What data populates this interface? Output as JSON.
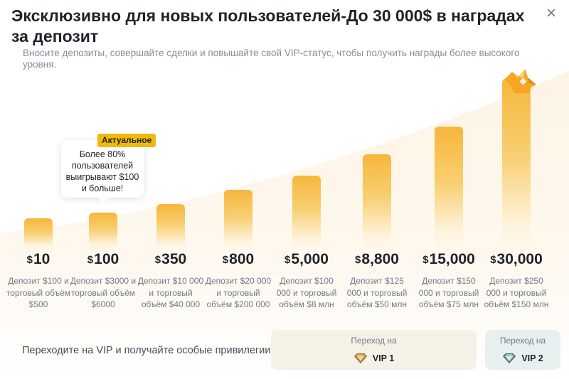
{
  "header": {
    "title": "Эксклюзивно для новых пользователей-До 30 000$ в наградах за депозит",
    "subtitle": "Вносите депозиты, совершайте сделки и повышайте свой VIP-статус, чтобы получить награды более высокого уровня.",
    "close_icon": "close-icon"
  },
  "colors": {
    "accent": "#f0b90b",
    "bar_top": "#f6b73c",
    "text_primary": "#1e2329",
    "text_secondary": "#707a8a"
  },
  "tooltip": {
    "badge": "Актуальное",
    "text": "Более 80% пользователей выигрывают $100 и больше!"
  },
  "tiers": [
    {
      "currency": "$",
      "amount": "10",
      "desc": "Депозит $100 и торговый объём $500"
    },
    {
      "currency": "$",
      "amount": "100",
      "desc": "Депозит $3000 и торговый объём $6000"
    },
    {
      "currency": "$",
      "amount": "350",
      "desc": "Депозит $10 000 и торговый объём $40 000"
    },
    {
      "currency": "$",
      "amount": "800",
      "desc": "Депозит $20 000 и торговый объём $200 000"
    },
    {
      "currency": "$",
      "amount": "5,000",
      "desc": "Депозит $100 000 и торговый объём $8 млн"
    },
    {
      "currency": "$",
      "amount": "8,800",
      "desc": "Депозит $125 000 и торговый объём $50 млн"
    },
    {
      "currency": "$",
      "amount": "15,000",
      "desc": "Депозит $150 000 и торговый объём $75 млн"
    },
    {
      "currency": "$",
      "amount": "30,000",
      "desc": "Депозит $250 000 и торговый объём $150 млн"
    }
  ],
  "footer": {
    "text": "Переходите на VIP и получайте особые привилегии",
    "vip1": {
      "label": "Переход на",
      "name": "VIP 1",
      "icon": "vip1-diamond-icon"
    },
    "vip2": {
      "label": "Переход на",
      "name": "VIP 2",
      "icon": "vip2-diamond-icon"
    }
  }
}
